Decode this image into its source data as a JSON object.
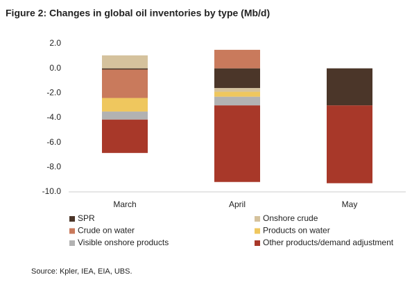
{
  "chart_data": {
    "type": "stacked-bar",
    "title": "Figure 2: Changes in global oil inventories by type (Mb/d)",
    "source": "Source: Kpler, IEA, EIA, UBS.",
    "categories": [
      "March",
      "April",
      "May"
    ],
    "series": [
      {
        "name": "SPR",
        "color": "#4b3629",
        "values": [
          -0.1,
          -1.6,
          -3.0
        ]
      },
      {
        "name": "Onshore crude",
        "color": "#d5c29d",
        "values": [
          1.05,
          -0.3,
          null
        ]
      },
      {
        "name": "Crude on water",
        "color": "#c97a5c",
        "values": [
          -2.3,
          1.5,
          null
        ]
      },
      {
        "name": "Products on water",
        "color": "#efc75e",
        "values": [
          -1.1,
          -0.4,
          null
        ]
      },
      {
        "name": "Visible onshore products",
        "color": "#b2b2b2",
        "values": [
          -0.65,
          -0.7,
          null
        ]
      },
      {
        "name": "Other products/demand adjustment",
        "color": "#a83829",
        "values": [
          -2.7,
          -6.2,
          -6.3
        ]
      }
    ],
    "ylim": [
      -10,
      2
    ],
    "yticks": [
      {
        "value": 2,
        "label": "2.0"
      },
      {
        "value": 0,
        "label": "0.0"
      },
      {
        "value": -2,
        "label": "-2.0"
      },
      {
        "value": -4,
        "label": "-4.0"
      },
      {
        "value": -6,
        "label": "-6.0"
      },
      {
        "value": -8,
        "label": "-8.0"
      },
      {
        "value": -10,
        "label": "-10.0"
      }
    ],
    "grid": false
  }
}
